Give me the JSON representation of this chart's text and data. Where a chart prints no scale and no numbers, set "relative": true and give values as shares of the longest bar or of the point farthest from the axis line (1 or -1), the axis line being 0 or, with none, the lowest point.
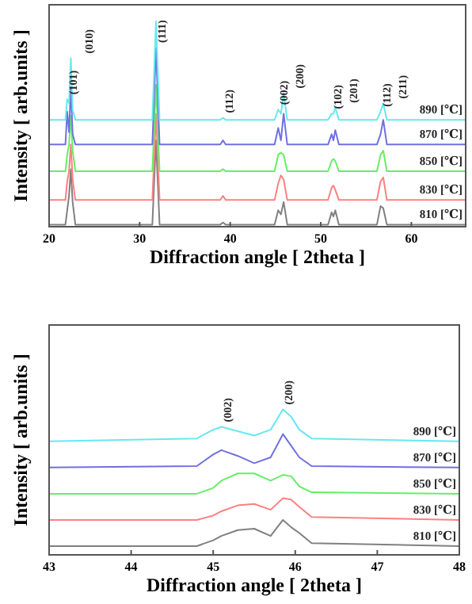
{
  "chart_data": [
    {
      "type": "line",
      "relative": true,
      "xlabel": "Diffraction angle [ 2theta ]",
      "ylabel": "Intensity [ arb.units ]",
      "xlim": [
        20,
        66
      ],
      "xticks": [
        20,
        30,
        40,
        50,
        60
      ],
      "x": [
        20,
        21.8,
        22.0,
        22.2,
        22.4,
        22.6,
        22.9,
        31.4,
        31.8,
        32.2,
        38.9,
        39.2,
        39.5,
        44.9,
        45.3,
        45.6,
        45.9,
        46.3,
        50.8,
        51.2,
        51.4,
        51.6,
        52.0,
        56.2,
        56.6,
        56.9,
        57.3,
        66
      ],
      "series": [
        {
          "name": "810 [℃]",
          "color": "#808080",
          "values": [
            0.01,
            0.01,
            0.08,
            0.15,
            0.28,
            0.12,
            0.01,
            0.01,
            0.42,
            0.01,
            0.01,
            0.02,
            0.01,
            0.01,
            0.08,
            0.06,
            0.12,
            0.01,
            0.01,
            0.07,
            0.05,
            0.08,
            0.01,
            0.01,
            0.1,
            0.09,
            0.01,
            0.01
          ]
        },
        {
          "name": "830 [℃]",
          "color": "#ff8080",
          "values": [
            0.13,
            0.13,
            0.22,
            0.27,
            0.4,
            0.23,
            0.13,
            0.13,
            0.55,
            0.13,
            0.13,
            0.15,
            0.13,
            0.13,
            0.21,
            0.25,
            0.23,
            0.13,
            0.13,
            0.19,
            0.2,
            0.18,
            0.13,
            0.13,
            0.22,
            0.24,
            0.13,
            0.13
          ]
        },
        {
          "name": "850 [℃]",
          "color": "#66ee66",
          "values": [
            0.27,
            0.27,
            0.35,
            0.4,
            0.54,
            0.37,
            0.27,
            0.27,
            0.69,
            0.27,
            0.27,
            0.28,
            0.27,
            0.27,
            0.35,
            0.36,
            0.35,
            0.27,
            0.27,
            0.32,
            0.33,
            0.32,
            0.27,
            0.27,
            0.35,
            0.37,
            0.27,
            0.27
          ]
        },
        {
          "name": "870 [℃]",
          "color": "#7070e0",
          "values": [
            0.4,
            0.4,
            0.56,
            0.46,
            0.68,
            0.45,
            0.4,
            0.4,
            0.87,
            0.4,
            0.4,
            0.42,
            0.4,
            0.4,
            0.48,
            0.42,
            0.55,
            0.4,
            0.4,
            0.45,
            0.42,
            0.47,
            0.4,
            0.4,
            0.45,
            0.52,
            0.4,
            0.4
          ]
        },
        {
          "name": "890 [℃]",
          "color": "#66e8f0",
          "values": [
            0.52,
            0.52,
            0.62,
            0.6,
            0.82,
            0.57,
            0.52,
            0.52,
            1,
            0.52,
            0.52,
            0.53,
            0.52,
            0.52,
            0.57,
            0.55,
            0.65,
            0.52,
            0.52,
            0.55,
            0.55,
            0.58,
            0.52,
            0.52,
            0.56,
            0.6,
            0.52,
            0.52
          ]
        }
      ],
      "annotations": [
        {
          "text": "(101)",
          "x": 22.0,
          "y": 0.62
        },
        {
          "text": "(010)",
          "x": 22.4,
          "y": 0.82
        },
        {
          "text": "(111)",
          "x": 31.8,
          "y": 1
        },
        {
          "text": "(112)",
          "x": 39.2,
          "y": 0.53
        },
        {
          "text": "(002)",
          "x": 45.3,
          "y": 0.57
        },
        {
          "text": "(200)",
          "x": 45.9,
          "y": 0.65
        },
        {
          "text": "(102)",
          "x": 51.2,
          "y": 0.55
        },
        {
          "text": "(201)",
          "x": 51.6,
          "y": 0.58
        },
        {
          "text": "(112)",
          "x": 56.6,
          "y": 0.56
        },
        {
          "text": "(211)",
          "x": 56.9,
          "y": 0.6
        }
      ]
    },
    {
      "type": "line",
      "relative": true,
      "xlabel": "Diffraction angle [ 2theta ]",
      "ylabel": "Intensity [ arb.units ]",
      "xlim": [
        43,
        48
      ],
      "xticks": [
        43,
        44,
        45,
        46,
        47,
        48
      ],
      "x": [
        43,
        44.8,
        45.0,
        45.1,
        45.3,
        45.5,
        45.7,
        45.85,
        45.95,
        46.05,
        46.2,
        48
      ],
      "series": [
        {
          "name": "810 [℃]",
          "color": "#808080",
          "values": [
            0.06,
            0.06,
            0.1,
            0.13,
            0.17,
            0.18,
            0.13,
            0.24,
            0.19,
            0.15,
            0.08,
            0.06
          ]
        },
        {
          "name": "830 [℃]",
          "color": "#ff8080",
          "values": [
            0.24,
            0.24,
            0.27,
            0.3,
            0.34,
            0.35,
            0.31,
            0.39,
            0.38,
            0.33,
            0.26,
            0.24
          ]
        },
        {
          "name": "850 [℃]",
          "color": "#66ee66",
          "values": [
            0.42,
            0.42,
            0.46,
            0.51,
            0.56,
            0.56,
            0.51,
            0.55,
            0.54,
            0.47,
            0.43,
            0.42
          ]
        },
        {
          "name": "870 [℃]",
          "color": "#7070e0",
          "values": [
            0.6,
            0.61,
            0.69,
            0.72,
            0.68,
            0.63,
            0.67,
            0.83,
            0.75,
            0.67,
            0.61,
            0.6
          ]
        },
        {
          "name": "890 [℃]",
          "color": "#66e8f0",
          "values": [
            0.78,
            0.8,
            0.86,
            0.88,
            0.85,
            0.82,
            0.86,
            1,
            0.95,
            0.86,
            0.8,
            0.78
          ]
        }
      ],
      "annotations": [
        {
          "text": "(002)",
          "x": 45.1,
          "y": 0.88
        },
        {
          "text": "(200)",
          "x": 45.85,
          "y": 1
        }
      ]
    }
  ]
}
